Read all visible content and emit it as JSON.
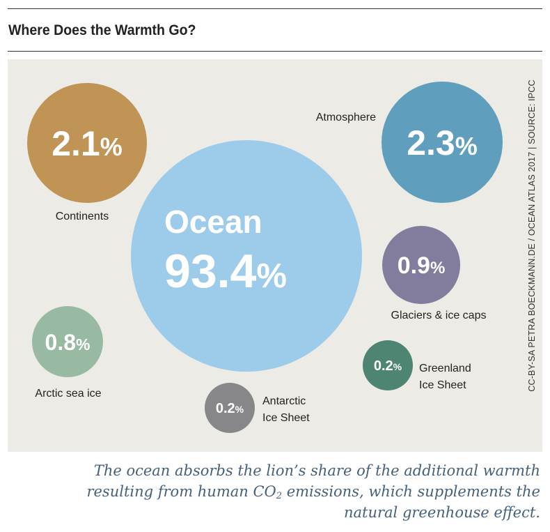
{
  "title": "Where Does the Warmth Go?",
  "credit": "CC-BY-SA PETRA BOECKMANN.DE / OCEAN ATLAS 2017 | SOURCE: IPCC",
  "caption": {
    "line1": "The ocean absorbs the lion’s share of the additional warmth",
    "line2_pre": "resulting from human CO",
    "line2_sub": "2",
    "line2_post": " emissions, which supplements the",
    "line3": "natural greenhouse effect."
  },
  "colors": {
    "ocean": "#9dcbea",
    "atmosphere": "#5f9fbd",
    "continents": "#c09455",
    "glaciers": "#827d9c",
    "arctic": "#98baa2",
    "greenland": "#4d8472",
    "antarctic": "#87878a",
    "panel": "#ecebe5"
  },
  "chart_data": {
    "type": "bubble",
    "title": "Where Does the Warmth Go?",
    "series": [
      {
        "key": "ocean",
        "name": "Ocean",
        "value": 93.4,
        "label": "93.4%",
        "text": "Ocean"
      },
      {
        "key": "atmosphere",
        "name": "Atmosphere",
        "value": 2.3,
        "label": "2.3%"
      },
      {
        "key": "continents",
        "name": "Continents",
        "value": 2.1,
        "label": "2.1%"
      },
      {
        "key": "glaciers",
        "name": "Glaciers & ice caps",
        "value": 0.9,
        "label": "0.9%"
      },
      {
        "key": "arctic",
        "name": "Arctic sea ice",
        "value": 0.8,
        "label": "0.8%"
      },
      {
        "key": "greenland",
        "name": "Greenland Ice Sheet",
        "name_lines": [
          "Greenland",
          "Ice Sheet"
        ],
        "value": 0.2,
        "label": "0.2%"
      },
      {
        "key": "antarctic",
        "name": "Antarctic Ice Sheet",
        "name_lines": [
          "Antarctic",
          "Ice Sheet"
        ],
        "value": 0.2,
        "label": "0.2%"
      }
    ]
  }
}
